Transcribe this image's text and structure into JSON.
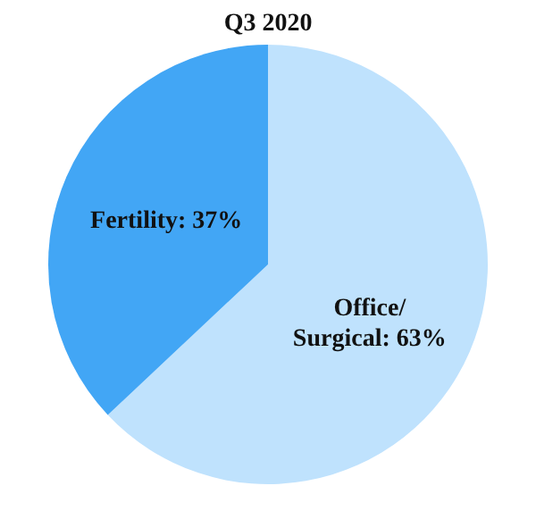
{
  "chart_data": {
    "type": "pie",
    "title": "Q3 2020",
    "categories": [
      "Office/ Surgical",
      "Fertility"
    ],
    "values": [
      63,
      37
    ],
    "colors": [
      "#bfe2fd",
      "#42a6f5"
    ],
    "value_labels": [
      "63%",
      "37%"
    ],
    "legend": false
  }
}
